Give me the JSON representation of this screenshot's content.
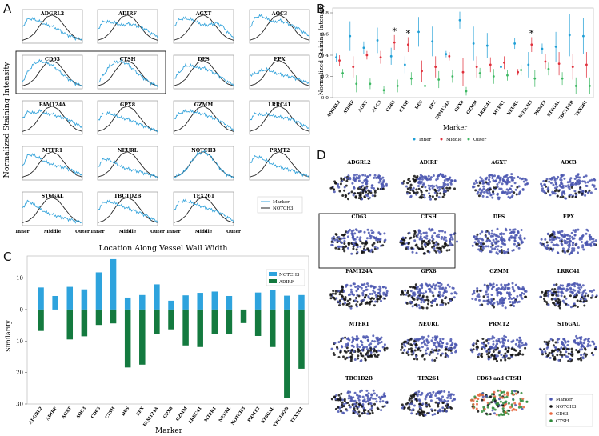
{
  "panel_labels": [
    "A",
    "B",
    "C",
    "D"
  ],
  "colors": {
    "marker": "#3aa6dc",
    "notch3": "#222222",
    "inner": "#1f9fd6",
    "middle": "#e0303c",
    "outer": "#3cb862",
    "notch3_bar": "#2ea3dd",
    "adirf_bar": "#147a3f",
    "scatter_marker": "#4a56b0",
    "scatter_notch3": "#111111",
    "scatter_cd63": "#e8663d",
    "scatter_ctsh": "#2f8a3a"
  },
  "chart_data": [
    {
      "panel": "A",
      "type": "line",
      "ylabel": "Normalized Staining Intensity",
      "xlabel": "Location Along Vessel Wall Width",
      "x_ticks": [
        "Inner",
        "Middle",
        "Outer"
      ],
      "legend": [
        "Marker",
        "NOTCH3"
      ],
      "legend_position": "bottom-right",
      "highlighted": [
        "CD63",
        "CTSH"
      ],
      "x": [
        0,
        0.1,
        0.2,
        0.3,
        0.4,
        0.5,
        0.6,
        0.7,
        0.8,
        0.9,
        1.0
      ],
      "notch3": [
        0.05,
        0.12,
        0.3,
        0.62,
        0.9,
        0.98,
        0.86,
        0.58,
        0.3,
        0.12,
        0.05
      ],
      "series": [
        {
          "name": "ADGRL2",
          "values": [
            0.55,
            0.85,
            0.82,
            0.72,
            0.62,
            0.55,
            0.45,
            0.3,
            0.2,
            0.12,
            0.08
          ]
        },
        {
          "name": "ADIRF",
          "values": [
            0.45,
            0.75,
            0.72,
            0.68,
            0.6,
            0.65,
            0.62,
            0.55,
            0.45,
            0.3,
            0.2
          ]
        },
        {
          "name": "AGXT",
          "values": [
            0.55,
            0.82,
            0.86,
            0.8,
            0.7,
            0.6,
            0.62,
            0.68,
            0.6,
            0.35,
            0.15
          ]
        },
        {
          "name": "AOC3",
          "values": [
            0.5,
            0.9,
            0.95,
            0.82,
            0.72,
            0.78,
            0.7,
            0.6,
            0.5,
            0.35,
            0.2
          ]
        },
        {
          "name": "CD63",
          "values": [
            0.2,
            0.6,
            0.88,
            0.96,
            0.9,
            0.8,
            0.62,
            0.42,
            0.25,
            0.12,
            0.06
          ]
        },
        {
          "name": "CTSH",
          "values": [
            0.15,
            0.45,
            0.78,
            0.92,
            0.95,
            0.85,
            0.65,
            0.45,
            0.28,
            0.14,
            0.06
          ]
        },
        {
          "name": "DES",
          "values": [
            0.3,
            0.55,
            0.8,
            0.78,
            0.72,
            0.7,
            0.62,
            0.5,
            0.35,
            0.2,
            0.1
          ]
        },
        {
          "name": "EPX",
          "values": [
            0.45,
            0.5,
            0.62,
            0.65,
            0.55,
            0.48,
            0.42,
            0.38,
            0.3,
            0.22,
            0.15
          ]
        },
        {
          "name": "FAM124A",
          "values": [
            0.55,
            0.78,
            0.72,
            0.8,
            0.7,
            0.68,
            0.6,
            0.55,
            0.45,
            0.32,
            0.2
          ]
        },
        {
          "name": "GPX8",
          "values": [
            0.45,
            0.7,
            0.72,
            0.62,
            0.55,
            0.5,
            0.42,
            0.32,
            0.22,
            0.14,
            0.08
          ]
        },
        {
          "name": "GZMM",
          "values": [
            0.5,
            0.72,
            0.8,
            0.78,
            0.74,
            0.68,
            0.6,
            0.52,
            0.4,
            0.25,
            0.12
          ]
        },
        {
          "name": "LRRC41",
          "values": [
            0.45,
            0.72,
            0.65,
            0.68,
            0.62,
            0.58,
            0.55,
            0.5,
            0.4,
            0.28,
            0.16
          ]
        },
        {
          "name": "MTFR1",
          "values": [
            0.45,
            0.88,
            0.85,
            0.72,
            0.6,
            0.5,
            0.45,
            0.4,
            0.32,
            0.22,
            0.12
          ]
        },
        {
          "name": "NEURL",
          "values": [
            0.4,
            0.72,
            0.68,
            0.55,
            0.42,
            0.35,
            0.3,
            0.25,
            0.18,
            0.12,
            0.06
          ]
        },
        {
          "name": "NOTCH3",
          "values": [
            0.05,
            0.12,
            0.3,
            0.62,
            0.9,
            0.98,
            0.86,
            0.58,
            0.3,
            0.12,
            0.05
          ]
        },
        {
          "name": "PRMT2",
          "values": [
            0.55,
            0.82,
            0.75,
            0.62,
            0.5,
            0.42,
            0.36,
            0.3,
            0.22,
            0.14,
            0.08
          ]
        },
        {
          "name": "ST6GAL",
          "values": [
            0.6,
            0.85,
            0.7,
            0.55,
            0.42,
            0.34,
            0.28,
            0.22,
            0.16,
            0.1,
            0.06
          ]
        },
        {
          "name": "TBC1D2B",
          "values": [
            0.5,
            0.8,
            0.82,
            0.75,
            0.66,
            0.58,
            0.5,
            0.42,
            0.32,
            0.2,
            0.1
          ]
        },
        {
          "name": "TEX261",
          "values": [
            0.5,
            0.82,
            0.85,
            0.78,
            0.7,
            0.62,
            0.55,
            0.48,
            0.38,
            0.25,
            0.12
          ]
        }
      ]
    },
    {
      "panel": "B",
      "type": "scatter",
      "ylabel": "Normalized Staining Intensity",
      "xlabel": "Marker",
      "ylim": [
        0,
        0.8
      ],
      "y_ticks": [
        "0.0",
        "0.2",
        "0.4",
        "0.6",
        "0.8"
      ],
      "legend": [
        "Inner",
        "Middle",
        "Outer"
      ],
      "legend_position": "bottom",
      "categories": [
        "ADGRL2",
        "ADIRF",
        "AGXT",
        "AOC3",
        "CD63",
        "CTSH",
        "DES",
        "EPX",
        "FAM124A",
        "GPX8",
        "GZMM",
        "LRRC41",
        "MTFR1",
        "NEURL",
        "NOTCH3",
        "PRMT2",
        "ST6GAL",
        "TBC1D2B",
        "TEX261"
      ],
      "significant": [
        "CD63",
        "CTSH",
        "NOTCH3"
      ],
      "series": [
        {
          "name": "Inner",
          "values": [
            0.38,
            0.58,
            0.47,
            0.54,
            0.39,
            0.31,
            0.62,
            0.53,
            0.41,
            0.73,
            0.51,
            0.49,
            0.29,
            0.51,
            0.31,
            0.46,
            0.48,
            0.59,
            0.58
          ],
          "err": [
            0.04,
            0.14,
            0.06,
            0.12,
            0.08,
            0.08,
            0.14,
            0.14,
            0.03,
            0.08,
            0.16,
            0.12,
            0.04,
            0.05,
            0.12,
            0.05,
            0.14,
            0.2,
            0.17
          ]
        },
        {
          "name": "Middle",
          "values": [
            0.35,
            0.29,
            0.4,
            0.38,
            0.52,
            0.5,
            0.25,
            0.29,
            0.39,
            0.24,
            0.29,
            0.31,
            0.33,
            0.24,
            0.5,
            0.34,
            0.32,
            0.29,
            0.31
          ],
          "err": [
            0.05,
            0.1,
            0.04,
            0.06,
            0.07,
            0.07,
            0.1,
            0.1,
            0.04,
            0.13,
            0.1,
            0.07,
            0.06,
            0.03,
            0.07,
            0.07,
            0.11,
            0.12,
            0.12
          ]
        },
        {
          "name": "Outer",
          "values": [
            0.23,
            0.13,
            0.13,
            0.07,
            0.11,
            0.18,
            0.11,
            0.17,
            0.2,
            0.06,
            0.23,
            0.2,
            0.21,
            0.26,
            0.18,
            0.27,
            0.18,
            0.11,
            0.11
          ],
          "err": [
            0.04,
            0.08,
            0.05,
            0.04,
            0.06,
            0.06,
            0.08,
            0.08,
            0.06,
            0.04,
            0.05,
            0.07,
            0.05,
            0.05,
            0.08,
            0.06,
            0.06,
            0.08,
            0.08
          ]
        }
      ]
    },
    {
      "panel": "C",
      "type": "bar",
      "ylabel": "Similarity",
      "xlabel": "Marker",
      "ylim": [
        -30,
        17
      ],
      "y_ticks": [
        {
          "value": 10,
          "label": "10"
        },
        {
          "value": 0,
          "label": "0"
        },
        {
          "value": -10,
          "label": "10"
        },
        {
          "value": -20,
          "label": "20"
        },
        {
          "value": -30,
          "label": "30"
        }
      ],
      "legend": [
        "NOTCH3",
        "ADIRF"
      ],
      "legend_position": "top-right",
      "categories": [
        "ADGRL2",
        "ADIRF",
        "AGXT",
        "AOC3",
        "CD63",
        "CTSH",
        "DES",
        "EPX",
        "FAM124A",
        "GPX8",
        "GZMM",
        "LRRC41",
        "MTFR1",
        "NEURL",
        "NOTCH3",
        "PRMT2",
        "ST6GAL",
        "TBC1D2B",
        "TEX261"
      ],
      "series": [
        {
          "name": "NOTCH3",
          "values": [
            7.0,
            4.3,
            7.2,
            6.4,
            11.8,
            16.0,
            3.8,
            4.6,
            8.0,
            2.8,
            4.5,
            5.3,
            5.7,
            4.3,
            0,
            5.4,
            6.2,
            4.4,
            4.6
          ]
        },
        {
          "name": "ADIRF",
          "values": [
            -6.8,
            0,
            -9.5,
            -8.5,
            -4.9,
            -4.4,
            -18.4,
            -17.5,
            -7.8,
            -6.3,
            -11.4,
            -11.9,
            -7.7,
            -7.9,
            -4.3,
            -8.4,
            -11.9,
            -28.2,
            -18.8
          ]
        }
      ]
    }
  ],
  "panel_d": {
    "titles": [
      "ADGRL2",
      "ADIRF",
      "AGXT",
      "AOC3",
      "CD63",
      "CTSH",
      "DES",
      "EPX",
      "FAM124A",
      "GPX8",
      "GZMM",
      "LRRC41",
      "MTFR1",
      "NEURL",
      "PRMT2",
      "ST6GAL",
      "TBC1D2B",
      "TEX261",
      "CD63 and CTSH"
    ],
    "highlighted": [
      "CD63",
      "CTSH"
    ],
    "legend": [
      "Marker",
      "NOTCH3",
      "CD63",
      "CTSH"
    ],
    "legend_position": "bottom-right"
  }
}
